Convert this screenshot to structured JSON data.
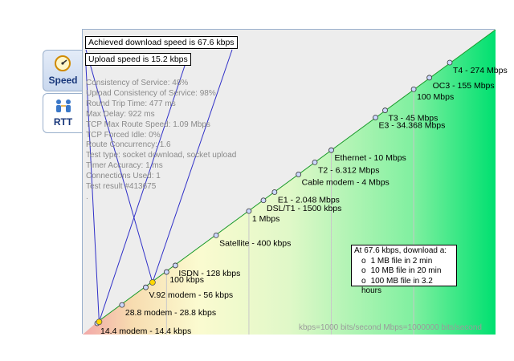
{
  "tabs": [
    {
      "label": "Speed",
      "icon": "speedometer-icon",
      "active": true
    },
    {
      "label": "RTT",
      "icon": "network-people-icon",
      "active": false
    }
  ],
  "results": {
    "download": "Achieved download speed is 67.6 kbps",
    "upload": "Upload speed is 15.2 kbps"
  },
  "stats": [
    "Consistency of Service: 48%",
    "Upload Consistency of Service: 98%",
    "Round Trip Time: 477 ms",
    "Max Delay: 922 ms",
    "TCP Max Route Speed: 1.09 Mbps",
    "TCP Forced Idle: 0%",
    "Route Concurrency: 1.6",
    "Test type: socket download, socket upload",
    "Timer Accuracy: 1 ms",
    "Connections Used: 1",
    "Test result #413675",
    "."
  ],
  "download_box": {
    "title": "At 67.6 kbps, download a:",
    "items": [
      "1 MB file in 2 min",
      "10 MB file in 20 min",
      "100 MB file in 3.2 hours"
    ]
  },
  "footnote": "kbps=1000 bits/second  Mbps=1000000 bits/second",
  "chart_data": {
    "type": "scatter",
    "scale": "log",
    "unit": "kbps",
    "download_kbps": 67.6,
    "upload_kbps": 15.2,
    "points": [
      {
        "label": "14.4 modem - 14.4 kbps",
        "kbps": 14.4
      },
      {
        "label": "28.8 modem - 28.8 kbps",
        "kbps": 28.8
      },
      {
        "label": "V.92 modem - 56 kbps",
        "kbps": 56
      },
      {
        "label": "100 kbps",
        "kbps": 100
      },
      {
        "label": "ISDN - 128 kbps",
        "kbps": 128
      },
      {
        "label": "Satellite - 400 kbps",
        "kbps": 400
      },
      {
        "label": "1 Mbps",
        "kbps": 1000
      },
      {
        "label": "DSL/T1 - 1500 kbps",
        "kbps": 1500
      },
      {
        "label": "E1 - 2.048 Mbps",
        "kbps": 2048
      },
      {
        "label": "Cable modem - 4 Mbps",
        "kbps": 4000
      },
      {
        "label": "T2 - 6.312 Mbps",
        "kbps": 6312
      },
      {
        "label": "Ethernet - 10 Mbps",
        "kbps": 10000
      },
      {
        "label": "E3 - 34.368 Mbps",
        "kbps": 34368
      },
      {
        "label": "T3 - 45 Mbps",
        "kbps": 45000
      },
      {
        "label": "100 Mbps",
        "kbps": 100000
      },
      {
        "label": "OC3 - 155 Mbps",
        "kbps": 155000
      },
      {
        "label": "T4 - 274 Mbps",
        "kbps": 274000
      }
    ],
    "colors": {
      "low": "#f0a0a0",
      "mid": "#fafad2",
      "high": "#00e070",
      "dot_user": "#ffd700"
    }
  }
}
